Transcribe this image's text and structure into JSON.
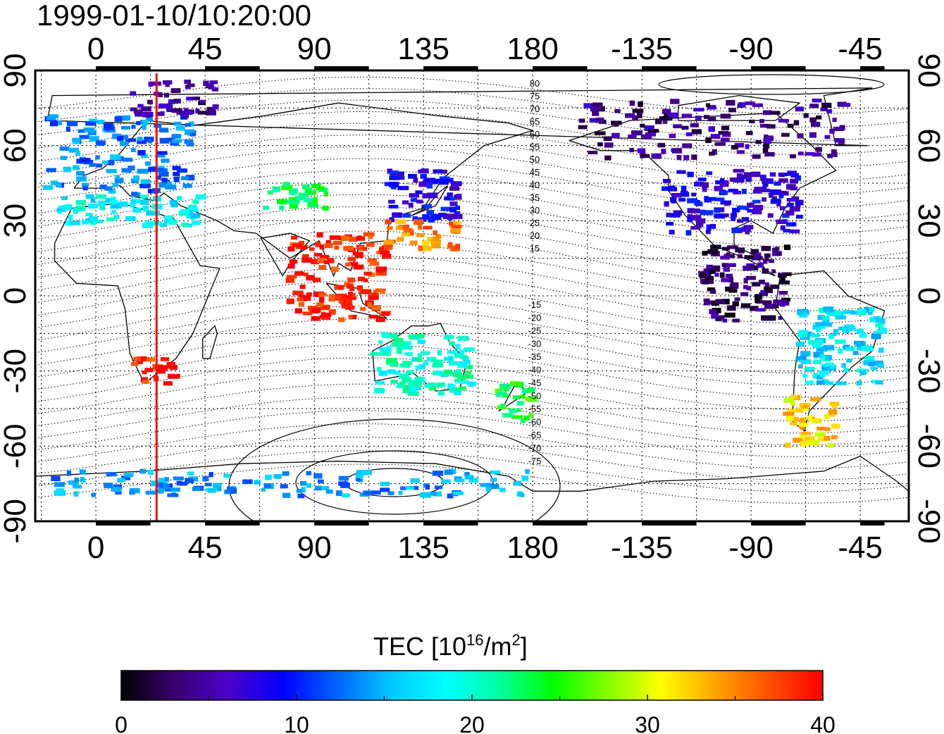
{
  "timestamp": "1999-01-10/10:20:00",
  "map": {
    "lon_ticks_top": [
      "0",
      "45",
      "90",
      "135",
      "180",
      "-135",
      "-90",
      "-45"
    ],
    "lon_ticks_bottom": [
      "0",
      "45",
      "90",
      "135",
      "180",
      "-135",
      "-90",
      "-45"
    ],
    "lat_ticks_left": [
      "90",
      "60",
      "30",
      "0",
      "-30",
      "-60",
      "-90"
    ],
    "lat_ticks_right": [
      "90",
      "60",
      "30",
      "0",
      "-30",
      "-60",
      "-90"
    ],
    "lon_range": [
      -25,
      335
    ],
    "lat_range": [
      -90,
      90
    ],
    "gridlines": "dotted",
    "marker_longitude": 25,
    "marker_color": "#ff0000",
    "contour_labels": [
      "80",
      "75",
      "70",
      "65",
      "60",
      "55",
      "50",
      "45",
      "40",
      "35",
      "30",
      "25",
      "20",
      "15",
      "-15",
      "-20",
      "-25",
      "-30",
      "-35",
      "-40",
      "-45",
      "-50",
      "-55",
      "-60",
      "-65",
      "-70",
      "-75"
    ]
  },
  "colorbar": {
    "label_main": "TEC  [10",
    "label_sup1": "16",
    "label_mid": "/m",
    "label_sup2": "2",
    "label_end": "]",
    "ticks": [
      "0",
      "10",
      "20",
      "30",
      "40"
    ],
    "range": [
      0,
      40
    ],
    "colors": [
      "#000000",
      "#3b0070",
      "#4b00c8",
      "#0000ff",
      "#0064ff",
      "#00c8ff",
      "#00ffff",
      "#00ffa0",
      "#00ff00",
      "#80ff00",
      "#ffff00",
      "#ffa500",
      "#ff5000",
      "#ff0000"
    ]
  },
  "chart_data": {
    "type": "heatmap",
    "title": "1999-01-10/10:20:00",
    "variable": "TEC",
    "units": "10^16/m^2",
    "value_range": [
      0,
      40
    ],
    "regions": [
      {
        "lon": [
          -20,
          40
        ],
        "lat": [
          40,
          72
        ],
        "tec": 13
      },
      {
        "lon": [
          -15,
          45
        ],
        "lat": [
          28,
          40
        ],
        "tec": 18
      },
      {
        "lon": [
          15,
          50
        ],
        "lat": [
          72,
          86
        ],
        "tec": 4
      },
      {
        "lon": [
          70,
          95
        ],
        "lat": [
          35,
          45
        ],
        "tec": 23
      },
      {
        "lon": [
          80,
          120
        ],
        "lat": [
          -10,
          25
        ],
        "tec": 39
      },
      {
        "lon": [
          120,
          150
        ],
        "lat": [
          30,
          50
        ],
        "tec": 8
      },
      {
        "lon": [
          120,
          150
        ],
        "lat": [
          18,
          30
        ],
        "tec": 35
      },
      {
        "lon": [
          15,
          35
        ],
        "lat": [
          -35,
          -25
        ],
        "tec": 39
      },
      {
        "lon": [
          115,
          155
        ],
        "lat": [
          -40,
          -15
        ],
        "tec": 20
      },
      {
        "lon": [
          165,
          180
        ],
        "lat": [
          -50,
          -35
        ],
        "tec": 24
      },
      {
        "lon": [
          -160,
          -50
        ],
        "lat": [
          55,
          78
        ],
        "tec": 4
      },
      {
        "lon": [
          -125,
          -70
        ],
        "lat": [
          25,
          50
        ],
        "tec": 8
      },
      {
        "lon": [
          -110,
          -75
        ],
        "lat": [
          -10,
          20
        ],
        "tec": 3
      },
      {
        "lon": [
          -70,
          -35
        ],
        "lat": [
          -35,
          -5
        ],
        "tec": 17
      },
      {
        "lon": [
          -75,
          -55
        ],
        "lat": [
          -60,
          -40
        ],
        "tec": 32
      },
      {
        "lon": [
          -20,
          180
        ],
        "lat": [
          -80,
          -70
        ],
        "tec": 14
      }
    ]
  }
}
